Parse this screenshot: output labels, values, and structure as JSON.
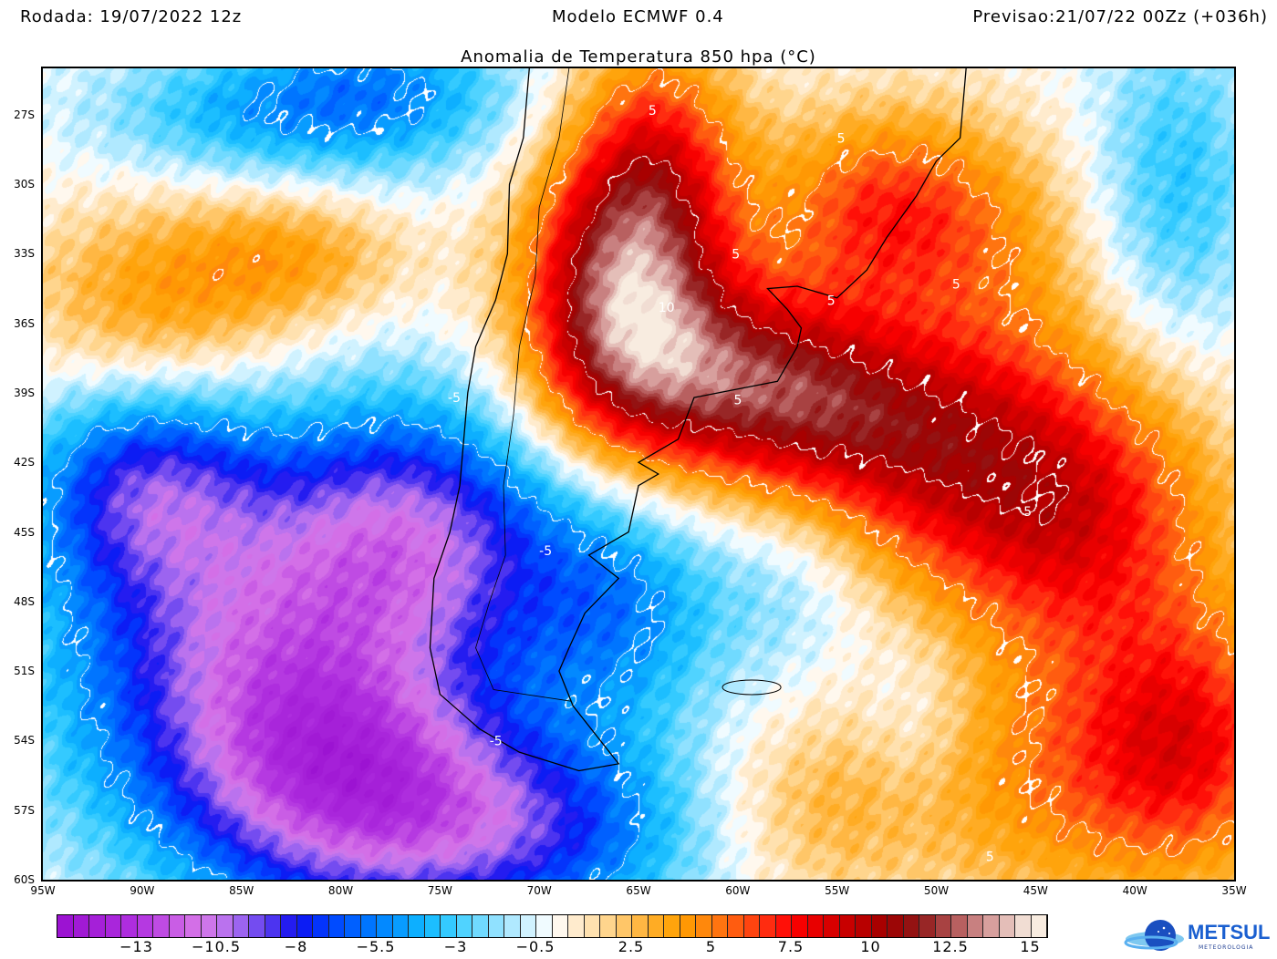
{
  "header": {
    "run": "Rodada: 19/07/2022 12z",
    "model": "Modelo ECMWF 0.4",
    "forecast": "Previsao:21/07/22 00Zz (+036h)"
  },
  "title": "Anomalia de Temperatura 850 hpa (°C)",
  "map": {
    "lon_range": [
      -95,
      -35
    ],
    "lat_range": [
      -25,
      -60
    ],
    "lat_ticks": [
      "27S",
      "30S",
      "33S",
      "36S",
      "39S",
      "42S",
      "45S",
      "48S",
      "51S",
      "54S",
      "57S",
      "60S"
    ],
    "lon_ticks": [
      "95W",
      "90W",
      "85W",
      "80W",
      "75W",
      "70W",
      "65W",
      "60W",
      "55W",
      "50W",
      "45W",
      "40W",
      "35W"
    ],
    "contour_labels": [
      "5",
      "5",
      "5",
      "5",
      "5",
      "10",
      "5",
      "5",
      "-5",
      "-5",
      "-5",
      "5"
    ]
  },
  "colorbar": {
    "range": [
      -15.5,
      15.5
    ],
    "step": 0.5,
    "labels": [
      "−13",
      "−10.5",
      "−8",
      "−5.5",
      "−3",
      "−0.5",
      "2.5",
      "5",
      "7.5",
      "10",
      "12.5",
      "15"
    ],
    "colors": {
      "-15.5": "#9a10d0",
      "-13": "#b030e0",
      "-11": "#d878e8",
      "-10": "#b070f0",
      "-9": "#6040f0",
      "-8": "#1010f0",
      "-7": "#0040ff",
      "-5.5": "#0080ff",
      "-4": "#10b8ff",
      "-3": "#40d0ff",
      "-1.5": "#a0e4ff",
      "-0.5": "#e0f6ff",
      "0": "#ffffff",
      "0.5": "#fff0dc",
      "1.5": "#ffdca0",
      "3": "#ffb030",
      "4": "#ffa000",
      "5": "#ff8010",
      "6": "#ff5010",
      "7": "#ff2010",
      "7.5": "#ff0000",
      "9": "#d00000",
      "10.5": "#a00000",
      "11.5": "#901818",
      "12.5": "#b05050",
      "13.5": "#d09090",
      "15": "#f8ece0"
    }
  },
  "logo": {
    "name": "METSUL",
    "sub": "METEOROLOGIA"
  }
}
